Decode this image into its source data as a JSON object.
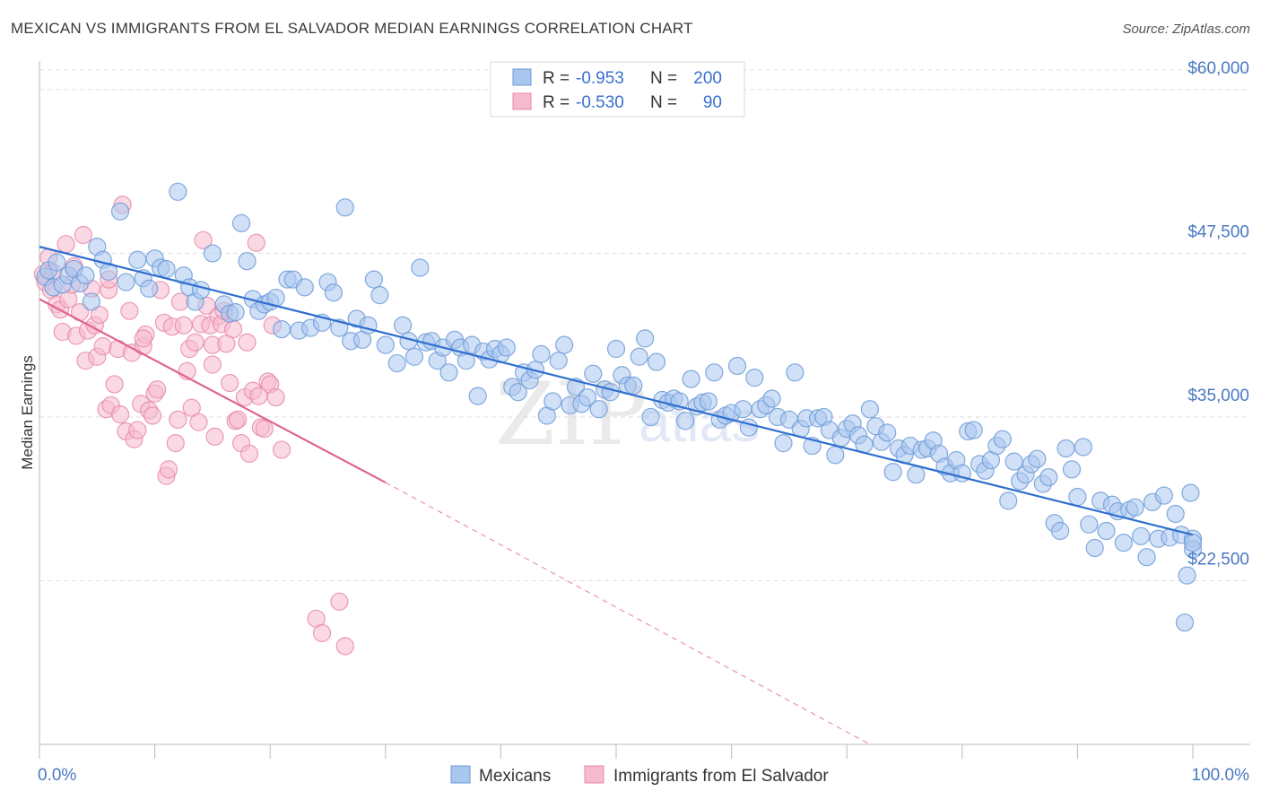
{
  "header": {
    "title": "MEXICAN VS IMMIGRANTS FROM EL SALVADOR MEDIAN EARNINGS CORRELATION CHART",
    "source": "Source: ZipAtlas.com"
  },
  "watermark": {
    "zip": "ZIP",
    "atlas": "atlas"
  },
  "legend_box": {
    "r_label": "R =",
    "n_label": "N =",
    "rows": [
      {
        "series": "Mexicans",
        "r": "-0.953",
        "n": "200"
      },
      {
        "series": "Immigrants from El Salvador",
        "r": "-0.530",
        "n": "90"
      }
    ]
  },
  "colors": {
    "blue_fill": "#a9c6ee",
    "blue_stroke": "#6f9bd8",
    "blue_line": "#2f6fcf",
    "pink_fill": "#f6b9cd",
    "pink_stroke": "#e98aaa",
    "pink_line": "#e0648c",
    "grid": "#dedede",
    "tick": "#4a78c2"
  },
  "chart_data": {
    "type": "scatter",
    "title": "MEXICAN VS IMMIGRANTS FROM EL SALVADOR MEDIAN EARNINGS CORRELATION CHART",
    "xlabel": "",
    "ylabel": "Median Earnings",
    "xlim": [
      0,
      100
    ],
    "ylim": [
      10000,
      61500
    ],
    "x_tick_labels": [
      {
        "value": 0,
        "label": "0.0%"
      },
      {
        "value": 100,
        "label": "100.0%"
      }
    ],
    "y_ticks": [
      {
        "value": 22500,
        "label": "$22,500"
      },
      {
        "value": 35000,
        "label": "$35,000"
      },
      {
        "value": 47500,
        "label": "$47,500"
      },
      {
        "value": 60000,
        "label": "$60,000"
      }
    ],
    "legend": [
      "Mexicans",
      "Immigrants from El Salvador"
    ],
    "series": [
      {
        "name": "Mexicans",
        "r": -0.953,
        "n": 200,
        "trend": {
          "x": [
            0,
            100
          ],
          "y": [
            48000,
            26000
          ]
        },
        "points": [
          [
            0.5,
            45.7
          ],
          [
            0.8,
            46.2
          ],
          [
            1.2,
            44.9
          ],
          [
            1.5,
            46.8
          ],
          [
            2.0,
            45.1
          ],
          [
            2.5,
            45.8
          ],
          [
            3.0,
            46.3
          ],
          [
            3.5,
            45.2
          ],
          [
            4.0,
            45.8
          ],
          [
            4.5,
            43.8
          ],
          [
            5.0,
            48.0
          ],
          [
            5.5,
            47.0
          ],
          [
            6.0,
            46.1
          ],
          [
            7.0,
            50.7
          ],
          [
            7.5,
            45.3
          ],
          [
            8.5,
            47.0
          ],
          [
            9.0,
            45.6
          ],
          [
            9.5,
            44.8
          ],
          [
            10.0,
            47.1
          ],
          [
            10.5,
            46.4
          ],
          [
            11.0,
            46.3
          ],
          [
            12.0,
            52.2
          ],
          [
            12.5,
            45.8
          ],
          [
            13.0,
            44.9
          ],
          [
            13.5,
            43.8
          ],
          [
            14.0,
            44.7
          ],
          [
            15.0,
            47.5
          ],
          [
            16.0,
            43.6
          ],
          [
            16.5,
            42.9
          ],
          [
            17.0,
            43.0
          ],
          [
            17.5,
            49.8
          ],
          [
            18.0,
            46.9
          ],
          [
            18.5,
            44.0
          ],
          [
            19.0,
            43.1
          ],
          [
            19.5,
            43.6
          ],
          [
            20.0,
            43.8
          ],
          [
            20.5,
            44.1
          ],
          [
            21.0,
            41.7
          ],
          [
            21.5,
            45.5
          ],
          [
            22.0,
            45.5
          ],
          [
            22.5,
            41.6
          ],
          [
            23.0,
            44.9
          ],
          [
            23.5,
            41.8
          ],
          [
            24.5,
            42.2
          ],
          [
            25.0,
            45.3
          ],
          [
            25.5,
            44.5
          ],
          [
            26.0,
            41.8
          ],
          [
            26.5,
            51.0
          ],
          [
            27.0,
            40.8
          ],
          [
            27.5,
            42.5
          ],
          [
            28.0,
            40.9
          ],
          [
            28.5,
            42.0
          ],
          [
            29.0,
            45.5
          ],
          [
            29.5,
            44.3
          ],
          [
            30.0,
            40.5
          ],
          [
            31.0,
            39.1
          ],
          [
            31.5,
            42.0
          ],
          [
            32.0,
            40.8
          ],
          [
            32.5,
            39.6
          ],
          [
            33.0,
            46.4
          ],
          [
            33.5,
            40.7
          ],
          [
            34.0,
            40.8
          ],
          [
            34.5,
            39.3
          ],
          [
            35.0,
            40.3
          ],
          [
            35.5,
            38.4
          ],
          [
            36.0,
            40.9
          ],
          [
            36.5,
            40.3
          ],
          [
            37.0,
            39.3
          ],
          [
            37.5,
            40.5
          ],
          [
            38.0,
            36.6
          ],
          [
            38.5,
            40.0
          ],
          [
            39.0,
            39.4
          ],
          [
            39.5,
            40.2
          ],
          [
            40.0,
            39.8
          ],
          [
            40.5,
            40.3
          ],
          [
            41.0,
            37.3
          ],
          [
            41.5,
            36.9
          ],
          [
            42.0,
            38.4
          ],
          [
            42.5,
            37.8
          ],
          [
            43.0,
            38.6
          ],
          [
            43.5,
            39.8
          ],
          [
            44.0,
            35.1
          ],
          [
            44.5,
            36.2
          ],
          [
            45.0,
            39.3
          ],
          [
            45.5,
            40.5
          ],
          [
            46.0,
            35.9
          ],
          [
            46.5,
            37.3
          ],
          [
            47.0,
            36.0
          ],
          [
            47.5,
            36.5
          ],
          [
            48.0,
            38.3
          ],
          [
            48.5,
            35.6
          ],
          [
            49.0,
            37.1
          ],
          [
            49.5,
            36.9
          ],
          [
            50.0,
            40.2
          ],
          [
            50.5,
            38.2
          ],
          [
            51.0,
            37.4
          ],
          [
            51.5,
            37.4
          ],
          [
            52.0,
            39.6
          ],
          [
            52.5,
            41.0
          ],
          [
            53.0,
            35.0
          ],
          [
            53.5,
            39.2
          ],
          [
            54.0,
            36.3
          ],
          [
            54.5,
            36.1
          ],
          [
            55.0,
            36.4
          ],
          [
            55.5,
            36.2
          ],
          [
            56.0,
            34.7
          ],
          [
            56.5,
            37.9
          ],
          [
            57.0,
            35.8
          ],
          [
            57.5,
            36.1
          ],
          [
            58.0,
            36.2
          ],
          [
            58.5,
            38.4
          ],
          [
            59.0,
            34.8
          ],
          [
            59.5,
            35.1
          ],
          [
            60.0,
            35.3
          ],
          [
            60.5,
            38.9
          ],
          [
            61.0,
            35.6
          ],
          [
            61.5,
            34.2
          ],
          [
            62.0,
            38.0
          ],
          [
            62.5,
            35.6
          ],
          [
            63.0,
            35.9
          ],
          [
            63.5,
            36.4
          ],
          [
            64.0,
            35.0
          ],
          [
            64.5,
            33.0
          ],
          [
            65.0,
            34.8
          ],
          [
            65.5,
            38.4
          ],
          [
            66.0,
            34.1
          ],
          [
            66.5,
            34.9
          ],
          [
            67.0,
            32.8
          ],
          [
            67.5,
            34.9
          ],
          [
            68.0,
            35.0
          ],
          [
            68.5,
            34.0
          ],
          [
            69.0,
            32.1
          ],
          [
            69.5,
            33.4
          ],
          [
            70.0,
            34.1
          ],
          [
            70.5,
            34.5
          ],
          [
            71.0,
            33.6
          ],
          [
            71.5,
            32.9
          ],
          [
            72.0,
            35.6
          ],
          [
            72.5,
            34.3
          ],
          [
            73.0,
            33.1
          ],
          [
            73.5,
            33.8
          ],
          [
            74.0,
            30.8
          ],
          [
            74.5,
            32.6
          ],
          [
            75.0,
            32.1
          ],
          [
            75.5,
            32.8
          ],
          [
            76.0,
            30.6
          ],
          [
            76.5,
            32.5
          ],
          [
            77.0,
            32.6
          ],
          [
            77.5,
            33.2
          ],
          [
            78.0,
            32.2
          ],
          [
            78.5,
            31.2
          ],
          [
            79.0,
            30.7
          ],
          [
            79.5,
            31.7
          ],
          [
            80.0,
            30.7
          ],
          [
            80.5,
            33.9
          ],
          [
            81.0,
            34.0
          ],
          [
            81.5,
            31.4
          ],
          [
            82.0,
            30.9
          ],
          [
            82.5,
            31.7
          ],
          [
            83.0,
            32.8
          ],
          [
            83.5,
            33.3
          ],
          [
            84.0,
            28.6
          ],
          [
            84.5,
            31.6
          ],
          [
            85.0,
            30.1
          ],
          [
            85.5,
            30.6
          ],
          [
            86.0,
            31.4
          ],
          [
            86.5,
            31.8
          ],
          [
            87.0,
            29.9
          ],
          [
            87.5,
            30.4
          ],
          [
            88.0,
            26.9
          ],
          [
            88.5,
            26.3
          ],
          [
            89.0,
            32.6
          ],
          [
            89.5,
            31.0
          ],
          [
            90.0,
            28.9
          ],
          [
            90.5,
            32.7
          ],
          [
            91.0,
            26.8
          ],
          [
            91.5,
            25.0
          ],
          [
            92.0,
            28.6
          ],
          [
            92.5,
            26.3
          ],
          [
            93.0,
            28.3
          ],
          [
            93.5,
            27.8
          ],
          [
            94.0,
            25.4
          ],
          [
            94.5,
            27.9
          ],
          [
            95.0,
            28.1
          ],
          [
            95.5,
            25.9
          ],
          [
            96.0,
            24.3
          ],
          [
            96.5,
            28.5
          ],
          [
            97.0,
            25.7
          ],
          [
            97.5,
            29.0
          ],
          [
            98.0,
            25.8
          ],
          [
            98.5,
            27.6
          ],
          [
            99.0,
            26.0
          ],
          [
            99.3,
            19.3
          ],
          [
            99.5,
            22.9
          ],
          [
            99.8,
            29.2
          ],
          [
            100.0,
            25.7
          ],
          [
            100.0,
            24.9
          ],
          [
            100.0,
            25.4
          ]
        ]
      },
      {
        "name": "Immigrants from El Salvador",
        "r": -0.53,
        "n": 90,
        "trend_solid": {
          "x": [
            0,
            30
          ],
          "y": [
            44000,
            30000
          ]
        },
        "trend_dashed": {
          "x": [
            30,
            72
          ],
          "y": [
            30000,
            10000
          ]
        },
        "points": [
          [
            0.3,
            45.9
          ],
          [
            0.5,
            45.3
          ],
          [
            0.8,
            47.2
          ],
          [
            1.0,
            44.7
          ],
          [
            1.2,
            46.0
          ],
          [
            1.5,
            43.6
          ],
          [
            1.8,
            43.2
          ],
          [
            2.0,
            41.5
          ],
          [
            2.3,
            48.2
          ],
          [
            2.5,
            44.0
          ],
          [
            2.8,
            45.1
          ],
          [
            3.0,
            46.5
          ],
          [
            3.2,
            41.2
          ],
          [
            3.5,
            43.0
          ],
          [
            3.8,
            48.9
          ],
          [
            4.0,
            39.3
          ],
          [
            4.2,
            41.6
          ],
          [
            4.5,
            44.8
          ],
          [
            4.8,
            42.0
          ],
          [
            5.0,
            39.6
          ],
          [
            5.2,
            42.8
          ],
          [
            5.5,
            40.4
          ],
          [
            5.8,
            35.6
          ],
          [
            6.0,
            44.7
          ],
          [
            6.2,
            35.9
          ],
          [
            6.5,
            37.5
          ],
          [
            6.8,
            40.2
          ],
          [
            7.0,
            35.2
          ],
          [
            7.2,
            51.2
          ],
          [
            7.5,
            33.9
          ],
          [
            7.8,
            43.1
          ],
          [
            8.0,
            39.9
          ],
          [
            8.2,
            33.3
          ],
          [
            8.5,
            34.0
          ],
          [
            8.8,
            36.0
          ],
          [
            9.0,
            40.4
          ],
          [
            9.2,
            41.3
          ],
          [
            9.5,
            35.5
          ],
          [
            9.8,
            35.1
          ],
          [
            10.0,
            36.8
          ],
          [
            10.2,
            37.1
          ],
          [
            10.5,
            44.7
          ],
          [
            10.8,
            42.2
          ],
          [
            11.0,
            30.5
          ],
          [
            11.2,
            31.0
          ],
          [
            11.5,
            41.9
          ],
          [
            11.8,
            33.0
          ],
          [
            12.0,
            34.8
          ],
          [
            12.2,
            43.8
          ],
          [
            12.5,
            42.0
          ],
          [
            12.8,
            38.5
          ],
          [
            13.0,
            40.2
          ],
          [
            13.2,
            35.7
          ],
          [
            13.5,
            40.7
          ],
          [
            13.8,
            34.6
          ],
          [
            14.0,
            42.1
          ],
          [
            14.2,
            48.5
          ],
          [
            14.5,
            43.5
          ],
          [
            14.8,
            42.0
          ],
          [
            15.0,
            40.5
          ],
          [
            15.2,
            33.5
          ],
          [
            15.5,
            42.7
          ],
          [
            15.8,
            42.1
          ],
          [
            16.0,
            43.1
          ],
          [
            16.2,
            40.6
          ],
          [
            16.5,
            37.6
          ],
          [
            16.8,
            41.7
          ],
          [
            17.0,
            34.7
          ],
          [
            17.2,
            34.8
          ],
          [
            17.5,
            33.0
          ],
          [
            17.8,
            36.5
          ],
          [
            18.0,
            40.7
          ],
          [
            18.2,
            32.2
          ],
          [
            18.5,
            37.0
          ],
          [
            18.8,
            48.3
          ],
          [
            19.0,
            36.6
          ],
          [
            19.2,
            34.2
          ],
          [
            19.5,
            34.1
          ],
          [
            19.8,
            37.7
          ],
          [
            20.0,
            37.5
          ],
          [
            20.2,
            42.0
          ],
          [
            20.5,
            36.5
          ],
          [
            21.0,
            32.5
          ],
          [
            24.0,
            19.6
          ],
          [
            24.5,
            18.5
          ],
          [
            26.0,
            20.9
          ],
          [
            26.5,
            17.5
          ],
          [
            9.0,
            41.0
          ],
          [
            15.0,
            39.0
          ],
          [
            6.0,
            45.5
          ]
        ]
      }
    ]
  }
}
